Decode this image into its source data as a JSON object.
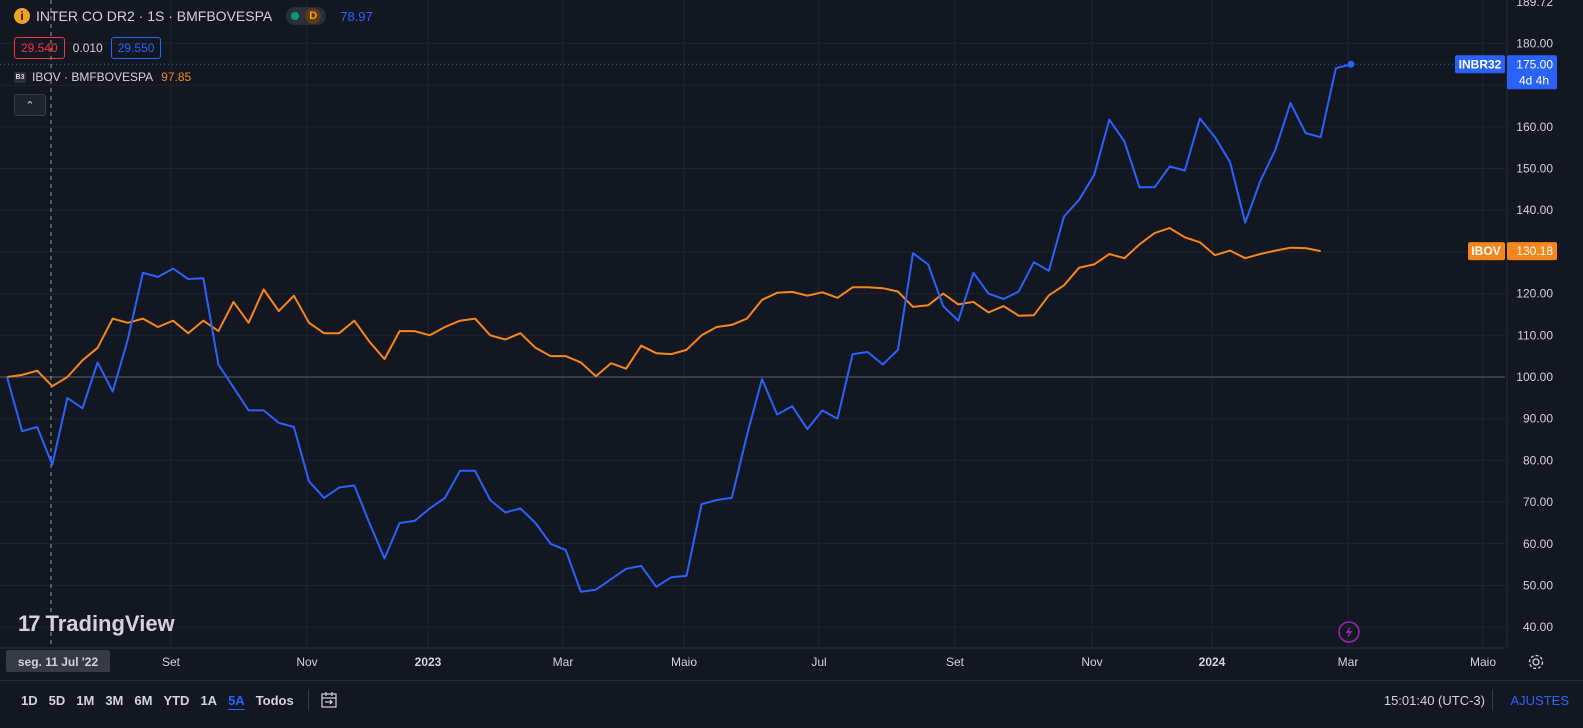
{
  "header": {
    "symbol_title": "INTER CO DR2 · 1S · BMFBOVESPA",
    "timeframe_badge": "D",
    "pct_value": "78.97",
    "bid": "29.540",
    "spread": "0.010",
    "ask": "29.550",
    "b3_logo": "B3",
    "compare_symbol": "IBOV · BMFBOVESPA",
    "compare_value": "97.85"
  },
  "watermark": "TradingView",
  "crosshair_date": "seg. 11 Jul '22",
  "bottom_bar": {
    "periods": [
      "1D",
      "5D",
      "1M",
      "3M",
      "6M",
      "YTD",
      "1A",
      "5A",
      "Todos"
    ],
    "active_period": "5A",
    "time": "15:01:40 (UTC-3)",
    "settings_label": "AJUSTES"
  },
  "colors": {
    "background": "#131722",
    "inbr32": "#2962ff",
    "ibov": "#f7861d",
    "bid": "#f23645"
  },
  "chart_data": {
    "type": "line",
    "x_labels": [
      "Set",
      "Nov",
      "2023",
      "Mar",
      "Maio",
      "Jul",
      "Set",
      "Nov",
      "2024",
      "Mar",
      "Maio"
    ],
    "y_ticks": [
      40,
      50,
      60,
      70,
      80,
      90,
      100,
      110,
      120,
      130,
      140,
      150,
      160,
      170,
      180
    ],
    "y_top_label": "189.72",
    "ylim": [
      31,
      190
    ],
    "baseline": 100,
    "grid": true,
    "y_scale": "percent-normalized",
    "series": [
      {
        "name": "INBR32",
        "color": "#2962ff",
        "last_label": "175.00",
        "countdown": "4d 4h",
        "values": [
          100,
          87,
          88,
          79,
          95,
          92.5,
          103.5,
          96.5,
          109,
          125,
          124,
          126,
          123.5,
          123.7,
          103,
          97.5,
          92,
          92,
          89,
          88,
          75,
          71,
          73.5,
          74,
          65,
          56.5,
          65,
          65.5,
          68.5,
          71,
          77.5,
          77.5,
          70.5,
          67.5,
          68.5,
          65,
          60,
          58.5,
          48.5,
          49,
          51.5,
          54,
          54.7,
          49.7,
          52,
          52.3,
          69.5,
          70.5,
          71,
          86,
          99.5,
          91,
          93,
          87.5,
          92,
          90,
          105.5,
          106,
          103,
          106.5,
          129.7,
          127,
          117,
          113.5,
          125,
          120,
          118.7,
          120.5,
          127.5,
          125.5,
          138.5,
          142.5,
          148.5,
          161.7,
          156.5,
          145.5,
          145.5,
          150.5,
          149.5,
          162,
          157.5,
          151.5,
          137,
          147,
          154.5,
          165.7,
          158.5,
          157.5,
          174,
          175
        ]
      },
      {
        "name": "IBOV",
        "color": "#f7861d",
        "last_label": "130.18",
        "values": [
          100,
          100.5,
          101.5,
          97.8,
          100,
          104,
          107,
          114,
          113,
          114,
          112,
          113.5,
          110.5,
          113.5,
          111,
          118,
          113,
          121,
          115.8,
          119.5,
          113,
          110.5,
          110.5,
          113.5,
          108.5,
          104.3,
          111,
          111,
          110,
          112,
          113.5,
          114,
          110,
          109,
          110.5,
          107,
          105,
          105,
          103.5,
          100.2,
          103.3,
          102,
          107.5,
          105.7,
          105.5,
          106.5,
          110,
          112,
          112.5,
          114,
          118.5,
          120.2,
          120.4,
          119.5,
          120.3,
          119,
          121.5,
          121.5,
          121.3,
          120.5,
          116.8,
          117.2,
          120,
          117.4,
          118,
          115.5,
          117,
          114.7,
          114.8,
          119.6,
          122,
          126.2,
          127,
          129.5,
          128.5,
          131.8,
          134.5,
          135.7,
          133.5,
          132.3,
          129.2,
          130.3,
          128.5,
          129.5,
          130.3,
          131,
          130.9,
          130.18
        ]
      }
    ]
  }
}
